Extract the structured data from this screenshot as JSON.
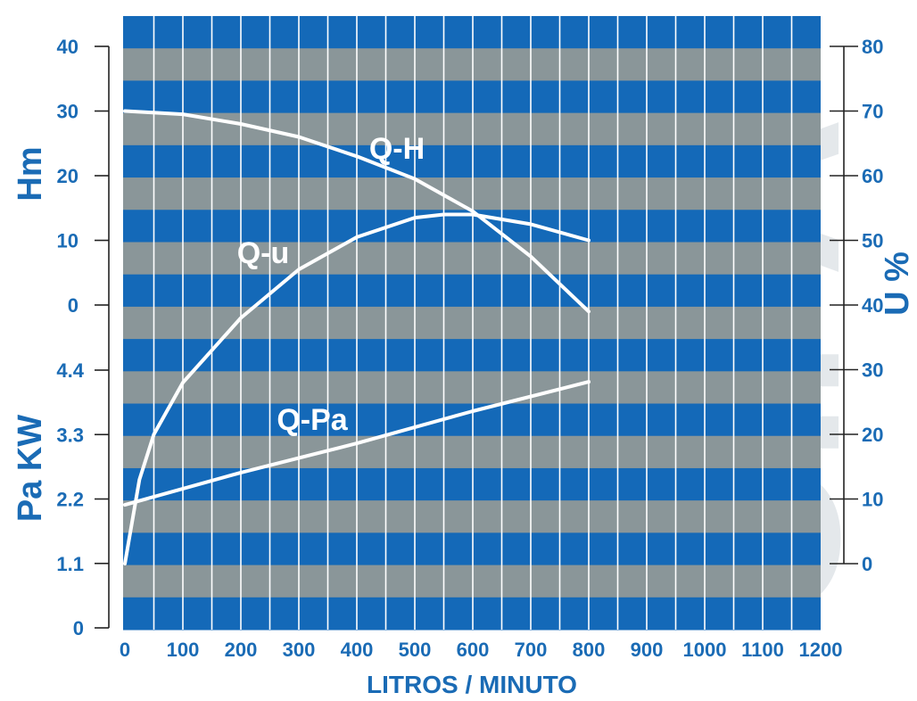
{
  "watermark": "CIFA",
  "colors": {
    "blue": "#1469b8",
    "gray": "#8a9699",
    "grid": "#ffffff",
    "text": "#1a6bb5",
    "curve": "#ffffff"
  },
  "chart_data": {
    "type": "line",
    "xlabel": "LITROS / MINUTO",
    "x_ticks": [
      "0",
      "100",
      "200",
      "300",
      "400",
      "500",
      "600",
      "700",
      "800",
      "900",
      "1000",
      "1100",
      "1200"
    ],
    "xlim": [
      0,
      1200
    ],
    "left_axes": [
      {
        "label": "Hm",
        "ticks": [
          "40",
          "30",
          "20",
          "10",
          "0"
        ],
        "ylim": [
          0,
          40
        ]
      },
      {
        "label": "Pa KW",
        "ticks": [
          "4.4",
          "3.3",
          "2.2",
          "1.1",
          "0"
        ],
        "ylim": [
          0,
          4.4
        ]
      }
    ],
    "right_axis": {
      "label": "U %",
      "ticks": [
        "80",
        "70",
        "60",
        "50",
        "40",
        "30",
        "20",
        "10",
        "0"
      ],
      "ylim": [
        0,
        80
      ]
    },
    "grid": true,
    "series": [
      {
        "name": "Q-H",
        "axis": "Hm",
        "x": [
          0,
          100,
          200,
          300,
          400,
          500,
          600,
          700,
          800
        ],
        "y": [
          30,
          29.5,
          28,
          26,
          23,
          19.5,
          14.5,
          7.5,
          -1
        ]
      },
      {
        "name": "Q-u",
        "axis": "U %",
        "x": [
          0,
          25,
          50,
          100,
          200,
          300,
          400,
          500,
          550,
          600,
          700,
          800
        ],
        "y": [
          0,
          13,
          20,
          28,
          38,
          45.5,
          50.5,
          53.5,
          54,
          54,
          52.5,
          50
        ]
      },
      {
        "name": "Q-Pa",
        "axis": "Pa KW",
        "x": [
          0,
          200,
          400,
          600,
          800
        ],
        "y": [
          2.1,
          2.65,
          3.15,
          3.7,
          4.2
        ]
      }
    ]
  }
}
